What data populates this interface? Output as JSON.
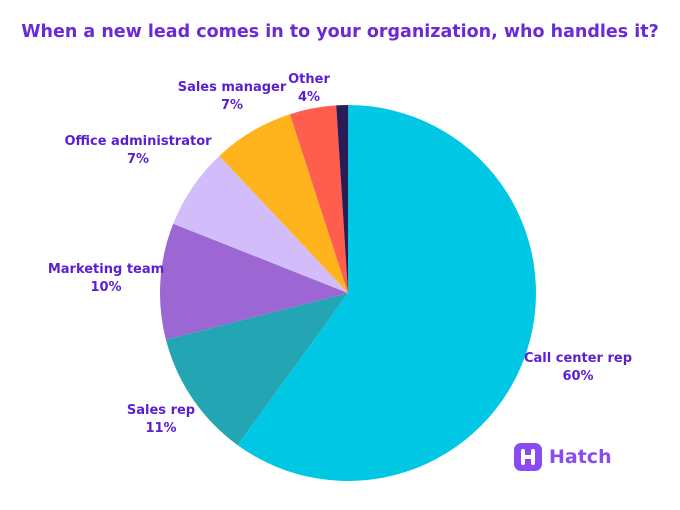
{
  "chart_data": {
    "type": "pie",
    "title": "When a new lead comes in to your organization, who handles it?",
    "slices": [
      {
        "label": "Call center rep",
        "percent_label": "60%",
        "value": 60,
        "color": "#00c8e4"
      },
      {
        "label": "Sales rep",
        "percent_label": "11%",
        "value": 11,
        "color": "#23a5b3"
      },
      {
        "label": "Marketing team",
        "percent_label": "10%",
        "value": 10,
        "color": "#9c66d3"
      },
      {
        "label": "Office administrator",
        "percent_label": "7%",
        "value": 7,
        "color": "#d3bcfa"
      },
      {
        "label": "Sales manager",
        "percent_label": "7%",
        "value": 7,
        "color": "#ffb31c"
      },
      {
        "label": "Other",
        "percent_label": "4%",
        "value": 4,
        "color": "#ff5e4e"
      },
      {
        "label": "",
        "percent_label": "",
        "value": 1,
        "color": "#2a1c55"
      }
    ],
    "start": "12 o'clock",
    "direction": "clockwise"
  },
  "logo": {
    "text": "Hatch",
    "icon": "hatch-logo-icon",
    "color": "#8a4cf0"
  }
}
